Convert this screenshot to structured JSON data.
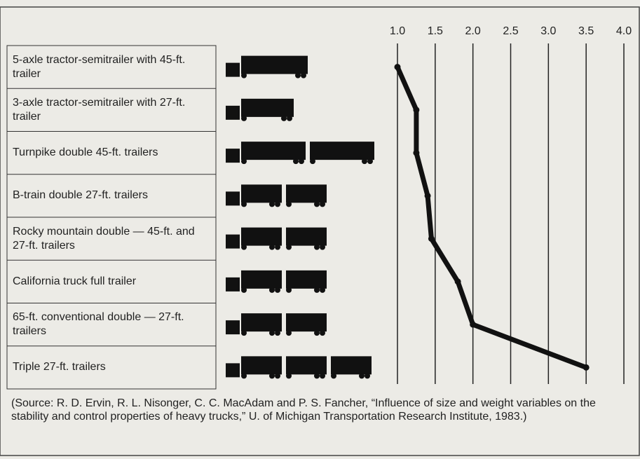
{
  "chart_data": {
    "type": "line",
    "categories": [
      "5-axle tractor-semitrailer with 45-ft. trailer",
      "3-axle tractor-semitrailer with 27-ft. trailer",
      "Turnpike double 45-ft. trailers",
      "B-train double 27-ft. trailers",
      "Rocky mountain double — 45-ft. and 27-ft. trailers",
      "California truck full trailer",
      "65-ft. conventional double — 27-ft. trailers",
      "Triple 27-ft. trailers"
    ],
    "values": [
      1.0,
      1.25,
      1.25,
      1.4,
      1.45,
      1.8,
      2.0,
      3.5
    ],
    "color": "#111111",
    "xlim": [
      1,
      4
    ],
    "xticks": [
      {
        "value": 1,
        "label": "1.0"
      },
      1.5,
      {
        "value": 2,
        "label": "2.0"
      },
      2.5,
      {
        "value": 3,
        "label": "3.0"
      },
      3.5,
      {
        "value": 4,
        "label": "4.0"
      }
    ],
    "grid": true,
    "note": "(Source: R. D. Ervin, R. L. Nisonger, C. C. MacAdam and P. S. Fancher, “Influence of size and weight variables on the stability and control properties of heavy trucks,” U. of Michigan Transportation Research Institute, 1983.)"
  }
}
